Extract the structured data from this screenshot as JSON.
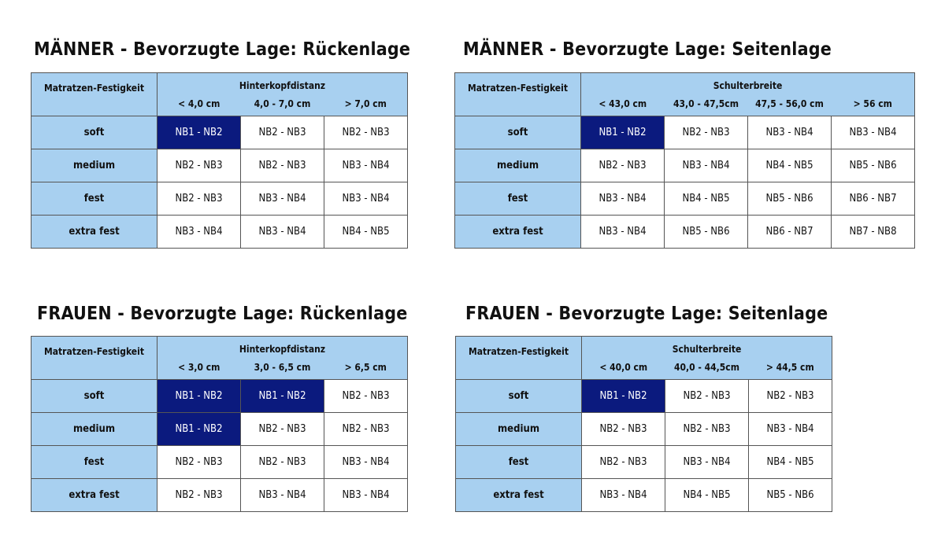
{
  "colors": {
    "header_bg": "#a8d0f0",
    "highlight_bg": "#0b1a7e",
    "highlight_text": "#ffffff",
    "border": "#555555"
  },
  "tables": [
    {
      "title": "MÄNNER - Bevorzugte Lage: Rückenlage",
      "corner": "Matratzen-Festigkeit",
      "group": "Hinterkopfdistanz",
      "columns": [
        "< 4,0 cm",
        "4,0 - 7,0 cm",
        "> 7,0 cm"
      ],
      "rows": [
        {
          "label": "soft",
          "cells": [
            "NB1 - NB2",
            "NB2 - NB3",
            "NB2 - NB3"
          ],
          "highlight": [
            0
          ]
        },
        {
          "label": "medium",
          "cells": [
            "NB2 - NB3",
            "NB2 - NB3",
            "NB3 - NB4"
          ],
          "highlight": []
        },
        {
          "label": "fest",
          "cells": [
            "NB2 - NB3",
            "NB3 - NB4",
            "NB3 - NB4"
          ],
          "highlight": []
        },
        {
          "label": "extra fest",
          "cells": [
            "NB3 - NB4",
            "NB3 - NB4",
            "NB4 - NB5"
          ],
          "highlight": []
        }
      ]
    },
    {
      "title": "MÄNNER - Bevorzugte Lage: Seitenlage",
      "corner": "Matratzen-Festigkeit",
      "group": "Schulterbreite",
      "columns": [
        "< 43,0 cm",
        "43,0 - 47,5cm",
        "47,5 - 56,0 cm",
        "> 56 cm"
      ],
      "rows": [
        {
          "label": "soft",
          "cells": [
            "NB1 - NB2",
            "NB2 - NB3",
            "NB3 - NB4",
            "NB3 - NB4"
          ],
          "highlight": [
            0
          ]
        },
        {
          "label": "medium",
          "cells": [
            "NB2 - NB3",
            "NB3 - NB4",
            "NB4 - NB5",
            "NB5 - NB6"
          ],
          "highlight": []
        },
        {
          "label": "fest",
          "cells": [
            "NB3 - NB4",
            "NB4 - NB5",
            "NB5 - NB6",
            "NB6 - NB7"
          ],
          "highlight": []
        },
        {
          "label": "extra fest",
          "cells": [
            "NB3 - NB4",
            "NB5 - NB6",
            "NB6 - NB7",
            "NB7 - NB8"
          ],
          "highlight": []
        }
      ]
    },
    {
      "title": "FRAUEN - Bevorzugte Lage: Rückenlage",
      "corner": "Matratzen-Festigkeit",
      "group": "Hinterkopfdistanz",
      "columns": [
        "< 3,0 cm",
        "3,0 - 6,5 cm",
        "> 6,5 cm"
      ],
      "rows": [
        {
          "label": "soft",
          "cells": [
            "NB1 - NB2",
            "NB1 - NB2",
            "NB2 - NB3"
          ],
          "highlight": [
            0,
            1
          ]
        },
        {
          "label": "medium",
          "cells": [
            "NB1 - NB2",
            "NB2 - NB3",
            "NB2 - NB3"
          ],
          "highlight": [
            0
          ]
        },
        {
          "label": "fest",
          "cells": [
            "NB2 - NB3",
            "NB2 - NB3",
            "NB3 - NB4"
          ],
          "highlight": []
        },
        {
          "label": "extra fest",
          "cells": [
            "NB2 - NB3",
            "NB3 - NB4",
            "NB3 - NB4"
          ],
          "highlight": []
        }
      ]
    },
    {
      "title": "FRAUEN - Bevorzugte Lage: Seitenlage",
      "corner": "Matratzen-Festigkeit",
      "group": "Schulterbreite",
      "columns": [
        "< 40,0 cm",
        "40,0 - 44,5cm",
        "> 44,5 cm"
      ],
      "rows": [
        {
          "label": "soft",
          "cells": [
            "NB1 - NB2",
            "NB2 - NB3",
            "NB2 - NB3"
          ],
          "highlight": [
            0
          ]
        },
        {
          "label": "medium",
          "cells": [
            "NB2 - NB3",
            "NB2 - NB3",
            "NB3 - NB4"
          ],
          "highlight": []
        },
        {
          "label": "fest",
          "cells": [
            "NB2 - NB3",
            "NB3 - NB4",
            "NB4 - NB5"
          ],
          "highlight": []
        },
        {
          "label": "extra fest",
          "cells": [
            "NB3 - NB4",
            "NB4 - NB5",
            "NB5 - NB6"
          ],
          "highlight": []
        }
      ]
    }
  ]
}
